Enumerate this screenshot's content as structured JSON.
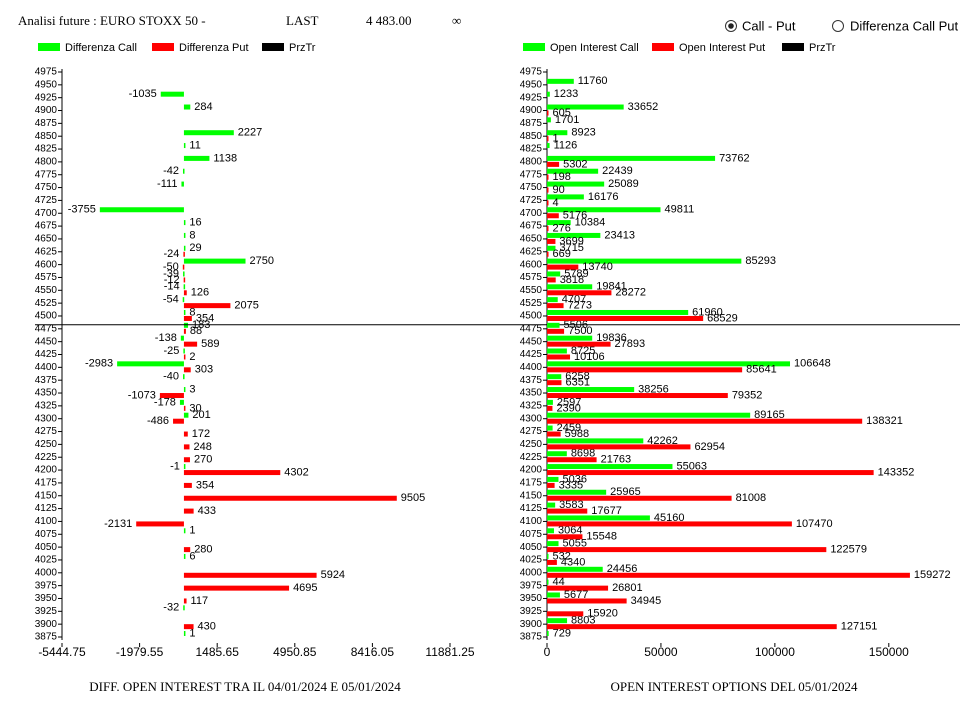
{
  "header": {
    "title": "Analisi future : EURO STOXX 50 -",
    "last_label": "LAST",
    "last_price": "4 483.00",
    "symbol": "∞",
    "options": [
      "Call - Put",
      "Differenza Call Put"
    ]
  },
  "chart_data": [
    {
      "type": "bar",
      "orientation": "horizontal",
      "title": "DIFF. OPEN INTEREST TRA IL 04/01/2024 E 05/01/2024",
      "categories": [
        4975,
        4950,
        4925,
        4900,
        4875,
        4850,
        4825,
        4800,
        4775,
        4750,
        4725,
        4700,
        4675,
        4650,
        4625,
        4600,
        4575,
        4550,
        4525,
        4500,
        4475,
        4450,
        4425,
        4400,
        4375,
        4350,
        4325,
        4300,
        4275,
        4250,
        4225,
        4200,
        4175,
        4150,
        4125,
        4100,
        4075,
        4050,
        4025,
        4000,
        3975,
        3950,
        3925,
        3900,
        3875
      ],
      "series": [
        {
          "name": "Differenza Call",
          "color": "#00ff00",
          "values": [
            null,
            null,
            -1035,
            284,
            null,
            2227,
            11,
            1138,
            -42,
            -111,
            null,
            -3755,
            16,
            8,
            29,
            2750,
            -39,
            -14,
            -54,
            8,
            183,
            -138,
            -25,
            -2983,
            -40,
            3,
            -178,
            201,
            null,
            null,
            null,
            -1,
            null,
            null,
            null,
            null,
            1,
            null,
            6,
            null,
            null,
            null,
            -32,
            null,
            1
          ]
        },
        {
          "name": "Differenza Put",
          "color": "#ff0000",
          "values": [
            null,
            null,
            null,
            null,
            null,
            null,
            null,
            null,
            null,
            null,
            null,
            null,
            null,
            null,
            -24,
            -50,
            -12,
            126,
            2075,
            354,
            88,
            589,
            2,
            303,
            null,
            -1073,
            30,
            -486,
            172,
            248,
            270,
            4302,
            354,
            9505,
            433,
            -2131,
            null,
            280,
            null,
            5924,
            4695,
            117,
            null,
            430,
            null
          ]
        },
        {
          "name": "PrzTr",
          "color": "#000000",
          "values": [
            null,
            null,
            null,
            null,
            null,
            null,
            null,
            null,
            null,
            null,
            null,
            null,
            null,
            null,
            null,
            null,
            null,
            null,
            null,
            null,
            null,
            null,
            null,
            null,
            null,
            null,
            null,
            null,
            null,
            null,
            null,
            null,
            null,
            null,
            null,
            null,
            null,
            null,
            null,
            null,
            null,
            null,
            null,
            null,
            null
          ]
        }
      ],
      "xlim": [
        -5444.75,
        11881.25
      ],
      "xticks": [
        -5444.75,
        -1979.55,
        1485.65,
        4950.85,
        8416.05,
        11881.25
      ],
      "reference_line": 4483
    },
    {
      "type": "bar",
      "orientation": "horizontal",
      "title": "OPEN INTEREST OPTIONS DEL 05/01/2024",
      "categories": [
        4975,
        4950,
        4925,
        4900,
        4875,
        4850,
        4825,
        4800,
        4775,
        4750,
        4725,
        4700,
        4675,
        4650,
        4625,
        4600,
        4575,
        4550,
        4525,
        4500,
        4475,
        4450,
        4425,
        4400,
        4375,
        4350,
        4325,
        4300,
        4275,
        4250,
        4225,
        4200,
        4175,
        4150,
        4125,
        4100,
        4075,
        4050,
        4025,
        4000,
        3975,
        3950,
        3925,
        3900,
        3875
      ],
      "series": [
        {
          "name": "Open Interest Call",
          "color": "#00ff00",
          "values": [
            null,
            11760,
            1233,
            33652,
            1701,
            8923,
            1126,
            73762,
            22439,
            25089,
            16176,
            49811,
            10384,
            23413,
            3715,
            85293,
            5789,
            19841,
            4707,
            61960,
            5506,
            19836,
            8725,
            106648,
            6258,
            38256,
            2597,
            89165,
            2459,
            42262,
            8698,
            55063,
            5036,
            25965,
            3583,
            45160,
            3064,
            5055,
            532,
            24456,
            44,
            5677,
            null,
            8803,
            729
          ]
        },
        {
          "name": "Open Interest Put",
          "color": "#ff0000",
          "values": [
            null,
            null,
            null,
            605,
            null,
            1,
            null,
            5302,
            198,
            90,
            4,
            5176,
            276,
            3699,
            669,
            13740,
            3818,
            28272,
            7273,
            68529,
            7500,
            27893,
            10106,
            85641,
            6351,
            79352,
            2390,
            138321,
            5988,
            62954,
            21763,
            143352,
            3335,
            81008,
            17677,
            107470,
            15548,
            122579,
            4340,
            159272,
            26801,
            34945,
            15920,
            127151,
            null
          ]
        },
        {
          "name": "PrzTr",
          "color": "#000000",
          "values": [
            null,
            null,
            null,
            null,
            null,
            null,
            null,
            null,
            null,
            null,
            null,
            null,
            null,
            null,
            null,
            null,
            null,
            null,
            null,
            null,
            null,
            null,
            null,
            null,
            null,
            null,
            null,
            null,
            null,
            null,
            null,
            null,
            null,
            null,
            null,
            null,
            null,
            null,
            null,
            null,
            null,
            null,
            null,
            null,
            null
          ]
        }
      ],
      "xlim": [
        0,
        161500
      ],
      "xticks": [
        0,
        50000,
        100000,
        150000
      ]
    }
  ]
}
